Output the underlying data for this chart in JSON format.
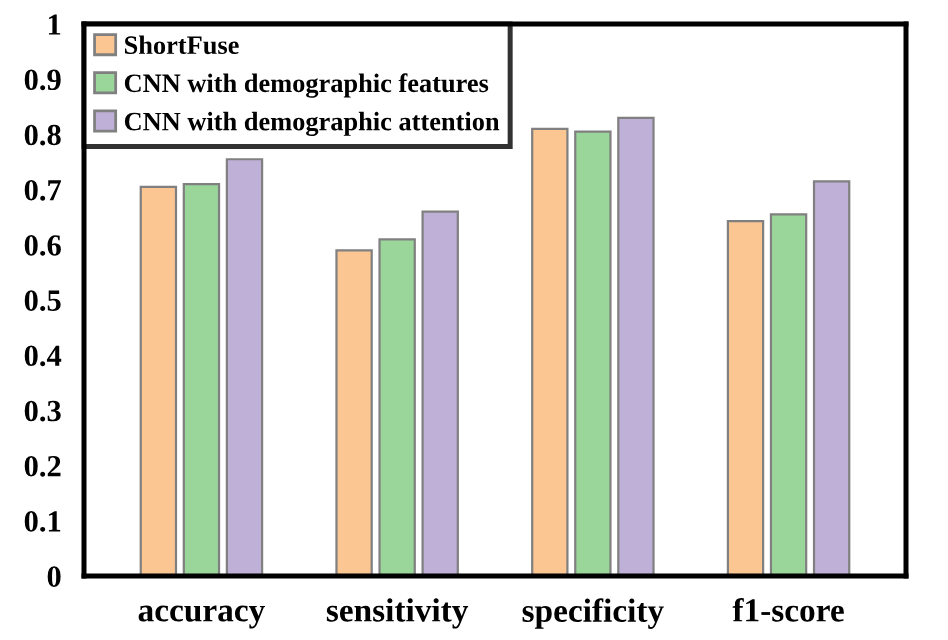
{
  "chart_data": {
    "type": "bar",
    "categories": [
      "accuracy",
      "sensitivity",
      "specificity",
      "f1-score"
    ],
    "series": [
      {
        "name": "ShortFuse",
        "color": "#fbc692",
        "values": [
          0.705,
          0.59,
          0.81,
          0.643
        ]
      },
      {
        "name": "CNN with demographic features",
        "color": "#9ad69a",
        "values": [
          0.71,
          0.61,
          0.805,
          0.655
        ]
      },
      {
        "name": "CNN with demographic attention",
        "color": "#bfb0d8",
        "values": [
          0.755,
          0.66,
          0.83,
          0.715
        ]
      }
    ],
    "ylim": [
      0,
      1
    ],
    "yticks": [
      0,
      0.1,
      0.2,
      0.3,
      0.4,
      0.5,
      0.6,
      0.7,
      0.8,
      0.9,
      1
    ],
    "grid": false,
    "legend": "top left"
  }
}
